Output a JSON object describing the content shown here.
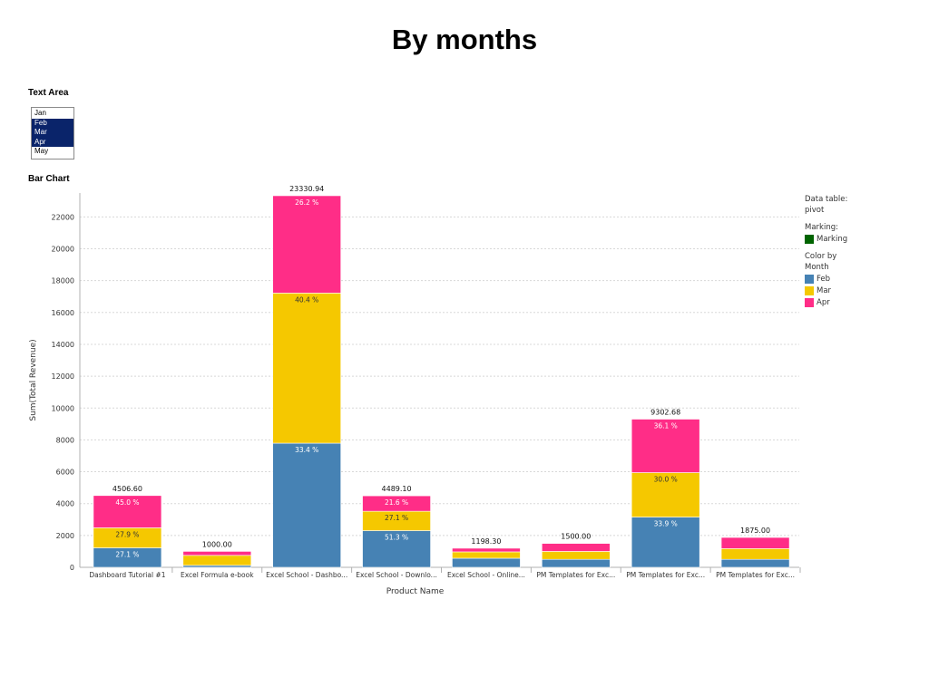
{
  "page": {
    "title": "By months",
    "text_area_label": "Text Area",
    "bar_chart_label": "Bar Chart"
  },
  "month_list": {
    "options": [
      {
        "label": "Jan",
        "selected": false
      },
      {
        "label": "Feb",
        "selected": true
      },
      {
        "label": "Mar",
        "selected": true
      },
      {
        "label": "Apr",
        "selected": true
      },
      {
        "label": "May",
        "selected": false
      }
    ]
  },
  "legend": {
    "data_table_label": "Data table:",
    "data_table_value": "pivot",
    "marking_label": "Marking:",
    "marking_item": "Marking",
    "marking_color": "#006400",
    "color_by_line1": "Color by",
    "color_by_line2": "Month",
    "items": [
      {
        "name": "Feb",
        "color": "#4682b4"
      },
      {
        "name": "Mar",
        "color": "#f5c800"
      },
      {
        "name": "Apr",
        "color": "#ff2d87"
      }
    ]
  },
  "chart_data": {
    "type": "bar",
    "stacked": true,
    "xlabel": "Product Name",
    "ylabel": "Sum(Total Revenue)",
    "ylim": [
      0,
      23500
    ],
    "yticks": [
      0,
      2000,
      4000,
      6000,
      8000,
      10000,
      12000,
      14000,
      16000,
      18000,
      20000,
      22000
    ],
    "grid": true,
    "legend_position": "right",
    "categories": [
      "Dashboard Tutorial #1",
      "Excel Formula e-book",
      "Excel School - Dashbo...",
      "Excel School - Downlo...",
      "Excel School - Online...",
      "PM Templates  for Exc...",
      "PM Templates  for Exc...",
      "PM Templates  for Exc..."
    ],
    "totals": [
      4506.6,
      1000.0,
      23330.94,
      4489.1,
      1198.3,
      1500.0,
      9302.68,
      1875.0
    ],
    "total_labels": [
      "4506.60",
      "1000.00",
      "23330.94",
      "4489.10",
      "1198.30",
      "1500.00",
      "9302.68",
      "1875.00"
    ],
    "series": [
      {
        "name": "Feb",
        "color": "#4682b4",
        "values": [
          1221,
          120,
          7793,
          2303,
          570,
          500,
          3154,
          500
        ],
        "labels": [
          "27.1 %",
          "",
          "33.4 %",
          "51.3 %",
          "",
          "",
          "33.9 %",
          ""
        ]
      },
      {
        "name": "Mar",
        "color": "#f5c800",
        "values": [
          1257,
          630,
          9426,
          1217,
          400,
          500,
          2791,
          675
        ],
        "labels": [
          "27.9 %",
          "",
          "40.4 %",
          "27.1 %",
          "",
          "",
          "30.0 %",
          ""
        ]
      },
      {
        "name": "Apr",
        "color": "#ff2d87",
        "values": [
          2028,
          250,
          6112,
          969,
          228,
          500,
          3358,
          700
        ],
        "labels": [
          "45.0 %",
          "",
          "26.2 %",
          "21.6 %",
          "",
          "",
          "36.1 %",
          ""
        ]
      }
    ]
  }
}
